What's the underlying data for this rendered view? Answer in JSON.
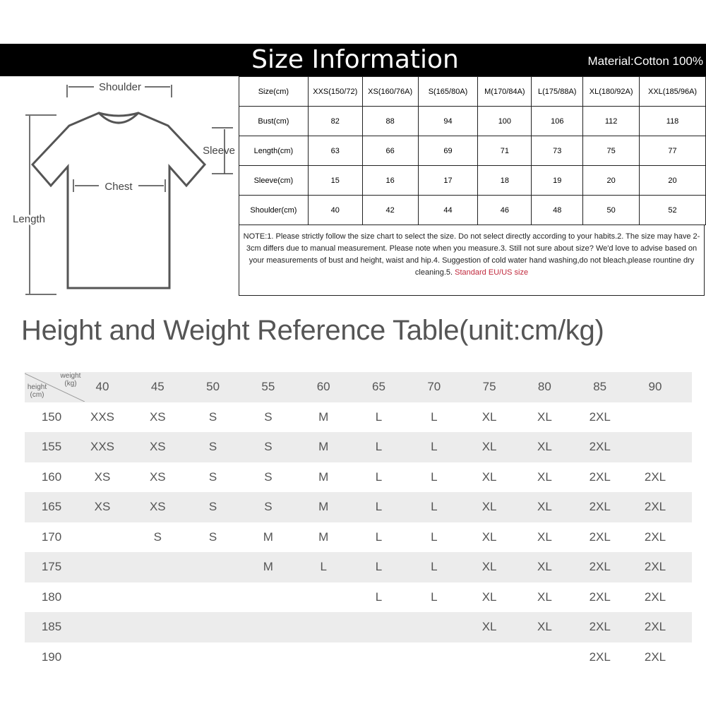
{
  "header": {
    "title": "Size Information",
    "material": "Material:Cotton 100%"
  },
  "diagram": {
    "shoulder": "Shoulder",
    "sleeve": "Sleeve",
    "chest": "Chest",
    "length": "Length"
  },
  "size_table": {
    "columns": [
      "Size(cm)",
      "XXS(150/72)",
      "XS(160/76A)",
      "S(165/80A)",
      "M(170/84A)",
      "L(175/88A)",
      "XL(180/92A)",
      "XXL(185/96A)"
    ],
    "rows": [
      [
        "Bust(cm)",
        "82",
        "88",
        "94",
        "100",
        "106",
        "112",
        "118"
      ],
      [
        "Length(cm)",
        "63",
        "66",
        "69",
        "71",
        "73",
        "75",
        "77"
      ],
      [
        "Sleeve(cm)",
        "15",
        "16",
        "17",
        "18",
        "19",
        "20",
        "20"
      ],
      [
        "Shoulder(cm)",
        "40",
        "42",
        "44",
        "46",
        "48",
        "50",
        "52"
      ]
    ]
  },
  "note": {
    "text": "NOTE:1. Please strictly follow the size chart to select the size. Do not select directly according to your habits.2. The size may have 2-3cm differs due to manual measurement. Please note when you measure.3. Still not sure about size? We'd love to advise based on your measurements of bust and height, waist and hip.4. Suggestion of cold water hand washing,do not bleach,please rountine dry cleaning.5. ",
    "highlight": "Standard EU/US size",
    "highlight_color": "#c0283c"
  },
  "reference": {
    "title": "Height and Weight Reference Table(unit:cm/kg)",
    "corner_weight": "weight (kg)",
    "corner_height": "height (cm)",
    "weights": [
      "40",
      "45",
      "50",
      "55",
      "60",
      "65",
      "70",
      "75",
      "80",
      "85",
      "90"
    ],
    "rows": [
      {
        "height": "150",
        "sizes": [
          "XXS",
          "XS",
          "S",
          "S",
          "M",
          "L",
          "L",
          "XL",
          "XL",
          "2XL",
          ""
        ]
      },
      {
        "height": "155",
        "sizes": [
          "XXS",
          "XS",
          "S",
          "S",
          "M",
          "L",
          "L",
          "XL",
          "XL",
          "2XL",
          ""
        ]
      },
      {
        "height": "160",
        "sizes": [
          "XS",
          "XS",
          "S",
          "S",
          "M",
          "L",
          "L",
          "XL",
          "XL",
          "2XL",
          "2XL"
        ]
      },
      {
        "height": "165",
        "sizes": [
          "XS",
          "XS",
          "S",
          "S",
          "M",
          "L",
          "L",
          "XL",
          "XL",
          "2XL",
          "2XL"
        ]
      },
      {
        "height": "170",
        "sizes": [
          "",
          "S",
          "S",
          "M",
          "M",
          "L",
          "L",
          "XL",
          "XL",
          "2XL",
          "2XL"
        ]
      },
      {
        "height": "175",
        "sizes": [
          "",
          "",
          "",
          "M",
          "L",
          "L",
          "L",
          "XL",
          "XL",
          "2XL",
          "2XL"
        ]
      },
      {
        "height": "180",
        "sizes": [
          "",
          "",
          "",
          "",
          "",
          "L",
          "L",
          "XL",
          "XL",
          "2XL",
          "2XL"
        ]
      },
      {
        "height": "185",
        "sizes": [
          "",
          "",
          "",
          "",
          "",
          "",
          "",
          "XL",
          "XL",
          "2XL",
          "2XL"
        ]
      },
      {
        "height": "190",
        "sizes": [
          "",
          "",
          "",
          "",
          "",
          "",
          "",
          "",
          "",
          "2XL",
          "2XL"
        ]
      }
    ]
  }
}
